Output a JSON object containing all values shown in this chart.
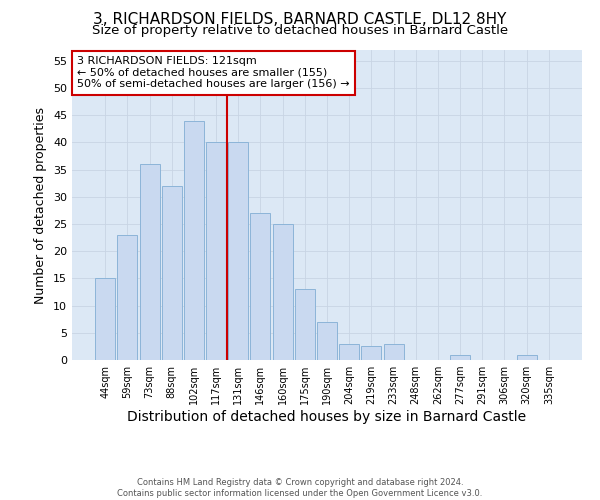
{
  "title1": "3, RICHARDSON FIELDS, BARNARD CASTLE, DL12 8HY",
  "title2": "Size of property relative to detached houses in Barnard Castle",
  "xlabel": "Distribution of detached houses by size in Barnard Castle",
  "ylabel": "Number of detached properties",
  "bar_labels": [
    "44sqm",
    "59sqm",
    "73sqm",
    "88sqm",
    "102sqm",
    "117sqm",
    "131sqm",
    "146sqm",
    "160sqm",
    "175sqm",
    "190sqm",
    "204sqm",
    "219sqm",
    "233sqm",
    "248sqm",
    "262sqm",
    "277sqm",
    "291sqm",
    "306sqm",
    "320sqm",
    "335sqm"
  ],
  "bar_values": [
    15,
    23,
    36,
    32,
    44,
    40,
    40,
    27,
    25,
    13,
    7,
    3,
    2.5,
    3,
    0,
    0,
    1,
    0,
    0,
    1,
    0
  ],
  "bar_color": "#c9d9f0",
  "bar_edge_color": "#8cb4d8",
  "vline_color": "#cc0000",
  "annotation_text": "3 RICHARDSON FIELDS: 121sqm\n← 50% of detached houses are smaller (155)\n50% of semi-detached houses are larger (156) →",
  "annotation_box_color": "#ffffff",
  "annotation_box_edge_color": "#cc0000",
  "ylim": [
    0,
    57
  ],
  "yticks": [
    0,
    5,
    10,
    15,
    20,
    25,
    30,
    35,
    40,
    45,
    50,
    55
  ],
  "grid_color": "#c8d4e4",
  "bg_color": "#dce8f5",
  "footer_text": "Contains HM Land Registry data © Crown copyright and database right 2024.\nContains public sector information licensed under the Open Government Licence v3.0.",
  "title1_fontsize": 11,
  "title2_fontsize": 9.5,
  "xlabel_fontsize": 10,
  "ylabel_fontsize": 9
}
